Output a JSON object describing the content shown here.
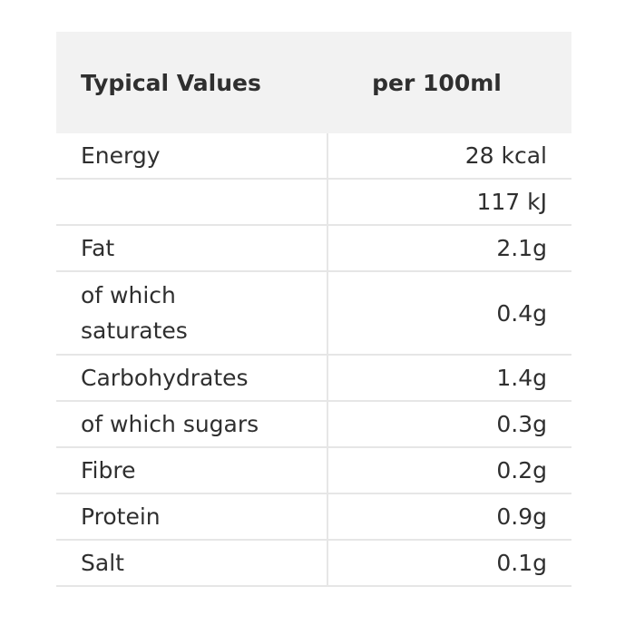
{
  "header": {
    "col1": "Typical Values",
    "col2": "per 100ml"
  },
  "rows": [
    {
      "name": "Energy",
      "value": "28 kcal"
    },
    {
      "name": "",
      "value": "117 kJ"
    },
    {
      "name": "Fat",
      "value": "2.1g"
    },
    {
      "name": "of which saturates",
      "value": "0.4g"
    },
    {
      "name": "Carbohydrates",
      "value": "1.4g"
    },
    {
      "name": "of which sugars",
      "value": "0.3g"
    },
    {
      "name": "Fibre",
      "value": "0.2g"
    },
    {
      "name": "Protein",
      "value": "0.9g"
    },
    {
      "name": "Salt",
      "value": "0.1g"
    }
  ],
  "colors": {
    "header_bg": "#f2f2f2",
    "text": "#2f2f2f",
    "grid": "#e6e6e6"
  }
}
